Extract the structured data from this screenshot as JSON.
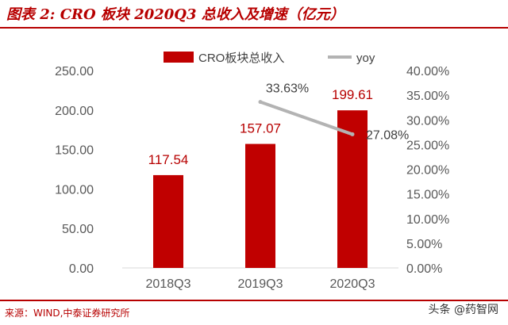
{
  "header": {
    "title": "图表 2: CRO 板块 2020Q3 总收入及增速（亿元）"
  },
  "footer": {
    "source": "来源：WIND,中泰证券研究所",
    "watermark": "头条 @药智网"
  },
  "colors": {
    "bar": "#c00000",
    "line": "#b3b3b3",
    "accent": "#b70000",
    "axis_text": "#595959"
  },
  "chart_data": {
    "type": "bar",
    "categories": [
      "2018Q3",
      "2019Q3",
      "2020Q3"
    ],
    "series": [
      {
        "name": "CRO板块总收入",
        "type": "bar",
        "axis": "left",
        "values": [
          117.54,
          157.07,
          199.61
        ],
        "labels": [
          "117.54",
          "157.07",
          "199.61"
        ]
      },
      {
        "name": "yoy",
        "type": "line",
        "axis": "right",
        "values": [
          null,
          33.63,
          27.08
        ],
        "labels": [
          "",
          "33.63%",
          "27.08%"
        ]
      }
    ],
    "y_left": {
      "min": 0,
      "max": 250,
      "step": 50,
      "tick_labels": [
        "0.00",
        "50.00",
        "100.00",
        "150.00",
        "200.00",
        "250.00"
      ]
    },
    "y_right": {
      "min": 0,
      "max": 40,
      "step": 5,
      "tick_labels": [
        "0.00%",
        "5.00%",
        "10.00%",
        "15.00%",
        "20.00%",
        "25.00%",
        "30.00%",
        "35.00%",
        "40.00%"
      ]
    },
    "legend_position": "top",
    "grid": false
  }
}
